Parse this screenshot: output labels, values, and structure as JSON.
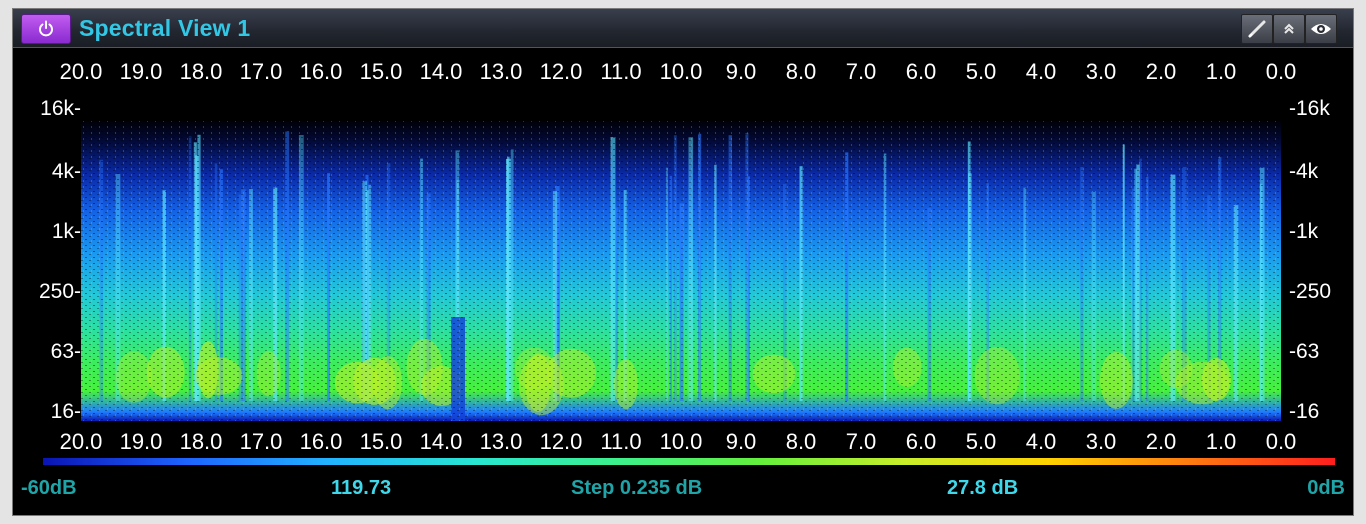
{
  "window": {
    "title": "Spectral View 1",
    "buttons": {
      "power": "power-icon",
      "pen": "pen-icon",
      "collapse": "double-chevron-up-icon",
      "eye": "eye-icon"
    }
  },
  "spectrogram": {
    "time_ticks": [
      "20.0",
      "19.0",
      "18.0",
      "17.0",
      "16.0",
      "15.0",
      "14.0",
      "13.0",
      "12.0",
      "11.0",
      "10.0",
      "9.0",
      "8.0",
      "7.0",
      "6.0",
      "5.0",
      "4.0",
      "3.0",
      "2.0",
      "1.0",
      "0.0"
    ],
    "freq_ticks_left": [
      "16k-",
      "4k-",
      "1k-",
      "250-",
      "63-",
      "16-"
    ],
    "freq_ticks_right": [
      "-16k",
      "-4k",
      "-1k",
      "-250",
      "-63",
      "-16"
    ],
    "color_scale": [
      "#0a14b4",
      "#1e64ff",
      "#22b4ff",
      "#28e6d2",
      "#3cf08c",
      "#64f03c",
      "#c8ee2a",
      "#ffd200",
      "#ff7a10",
      "#ff1e1e"
    ]
  },
  "scale": {
    "min_label": "-60dB",
    "value_label": "119.73",
    "step_label": "Step 0.235 dB",
    "level_label": "27.8 dB",
    "max_label": "0dB"
  }
}
